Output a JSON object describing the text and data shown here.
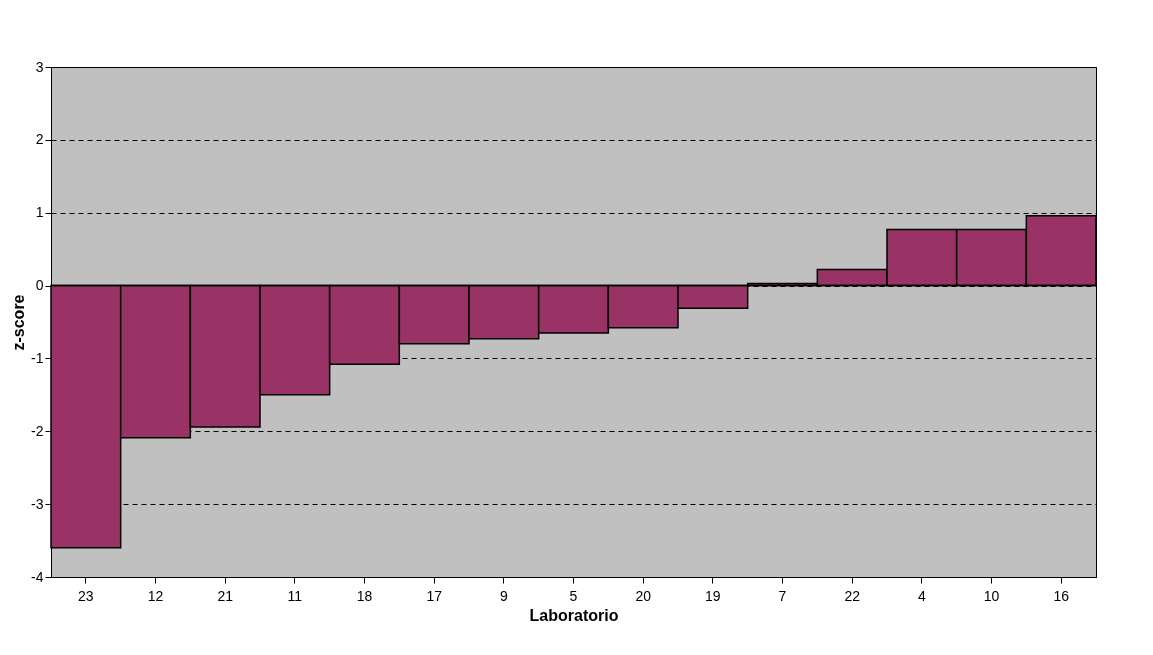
{
  "chart_data": {
    "type": "bar",
    "xlabel": "Laboratorio",
    "ylabel": "z-score",
    "categories": [
      "23",
      "12",
      "21",
      "11",
      "18",
      "17",
      "9",
      "5",
      "20",
      "19",
      "7",
      "22",
      "4",
      "10",
      "16"
    ],
    "series": [
      {
        "color": "#993366",
        "values": [
          -3.6,
          -2.09,
          -1.94,
          -1.5,
          -1.08,
          -0.8,
          -0.73,
          -0.65,
          -0.58,
          -0.31,
          0.03,
          0.22,
          0.77,
          0.77,
          0.96
        ]
      }
    ],
    "ylim": [
      -4,
      3
    ],
    "yticks": [
      -4,
      -3,
      -2,
      -1,
      0,
      1,
      2,
      3
    ],
    "grid": "y",
    "ref_lines": [
      {
        "axis": "y",
        "value": 0,
        "color": "#000000"
      }
    ]
  }
}
